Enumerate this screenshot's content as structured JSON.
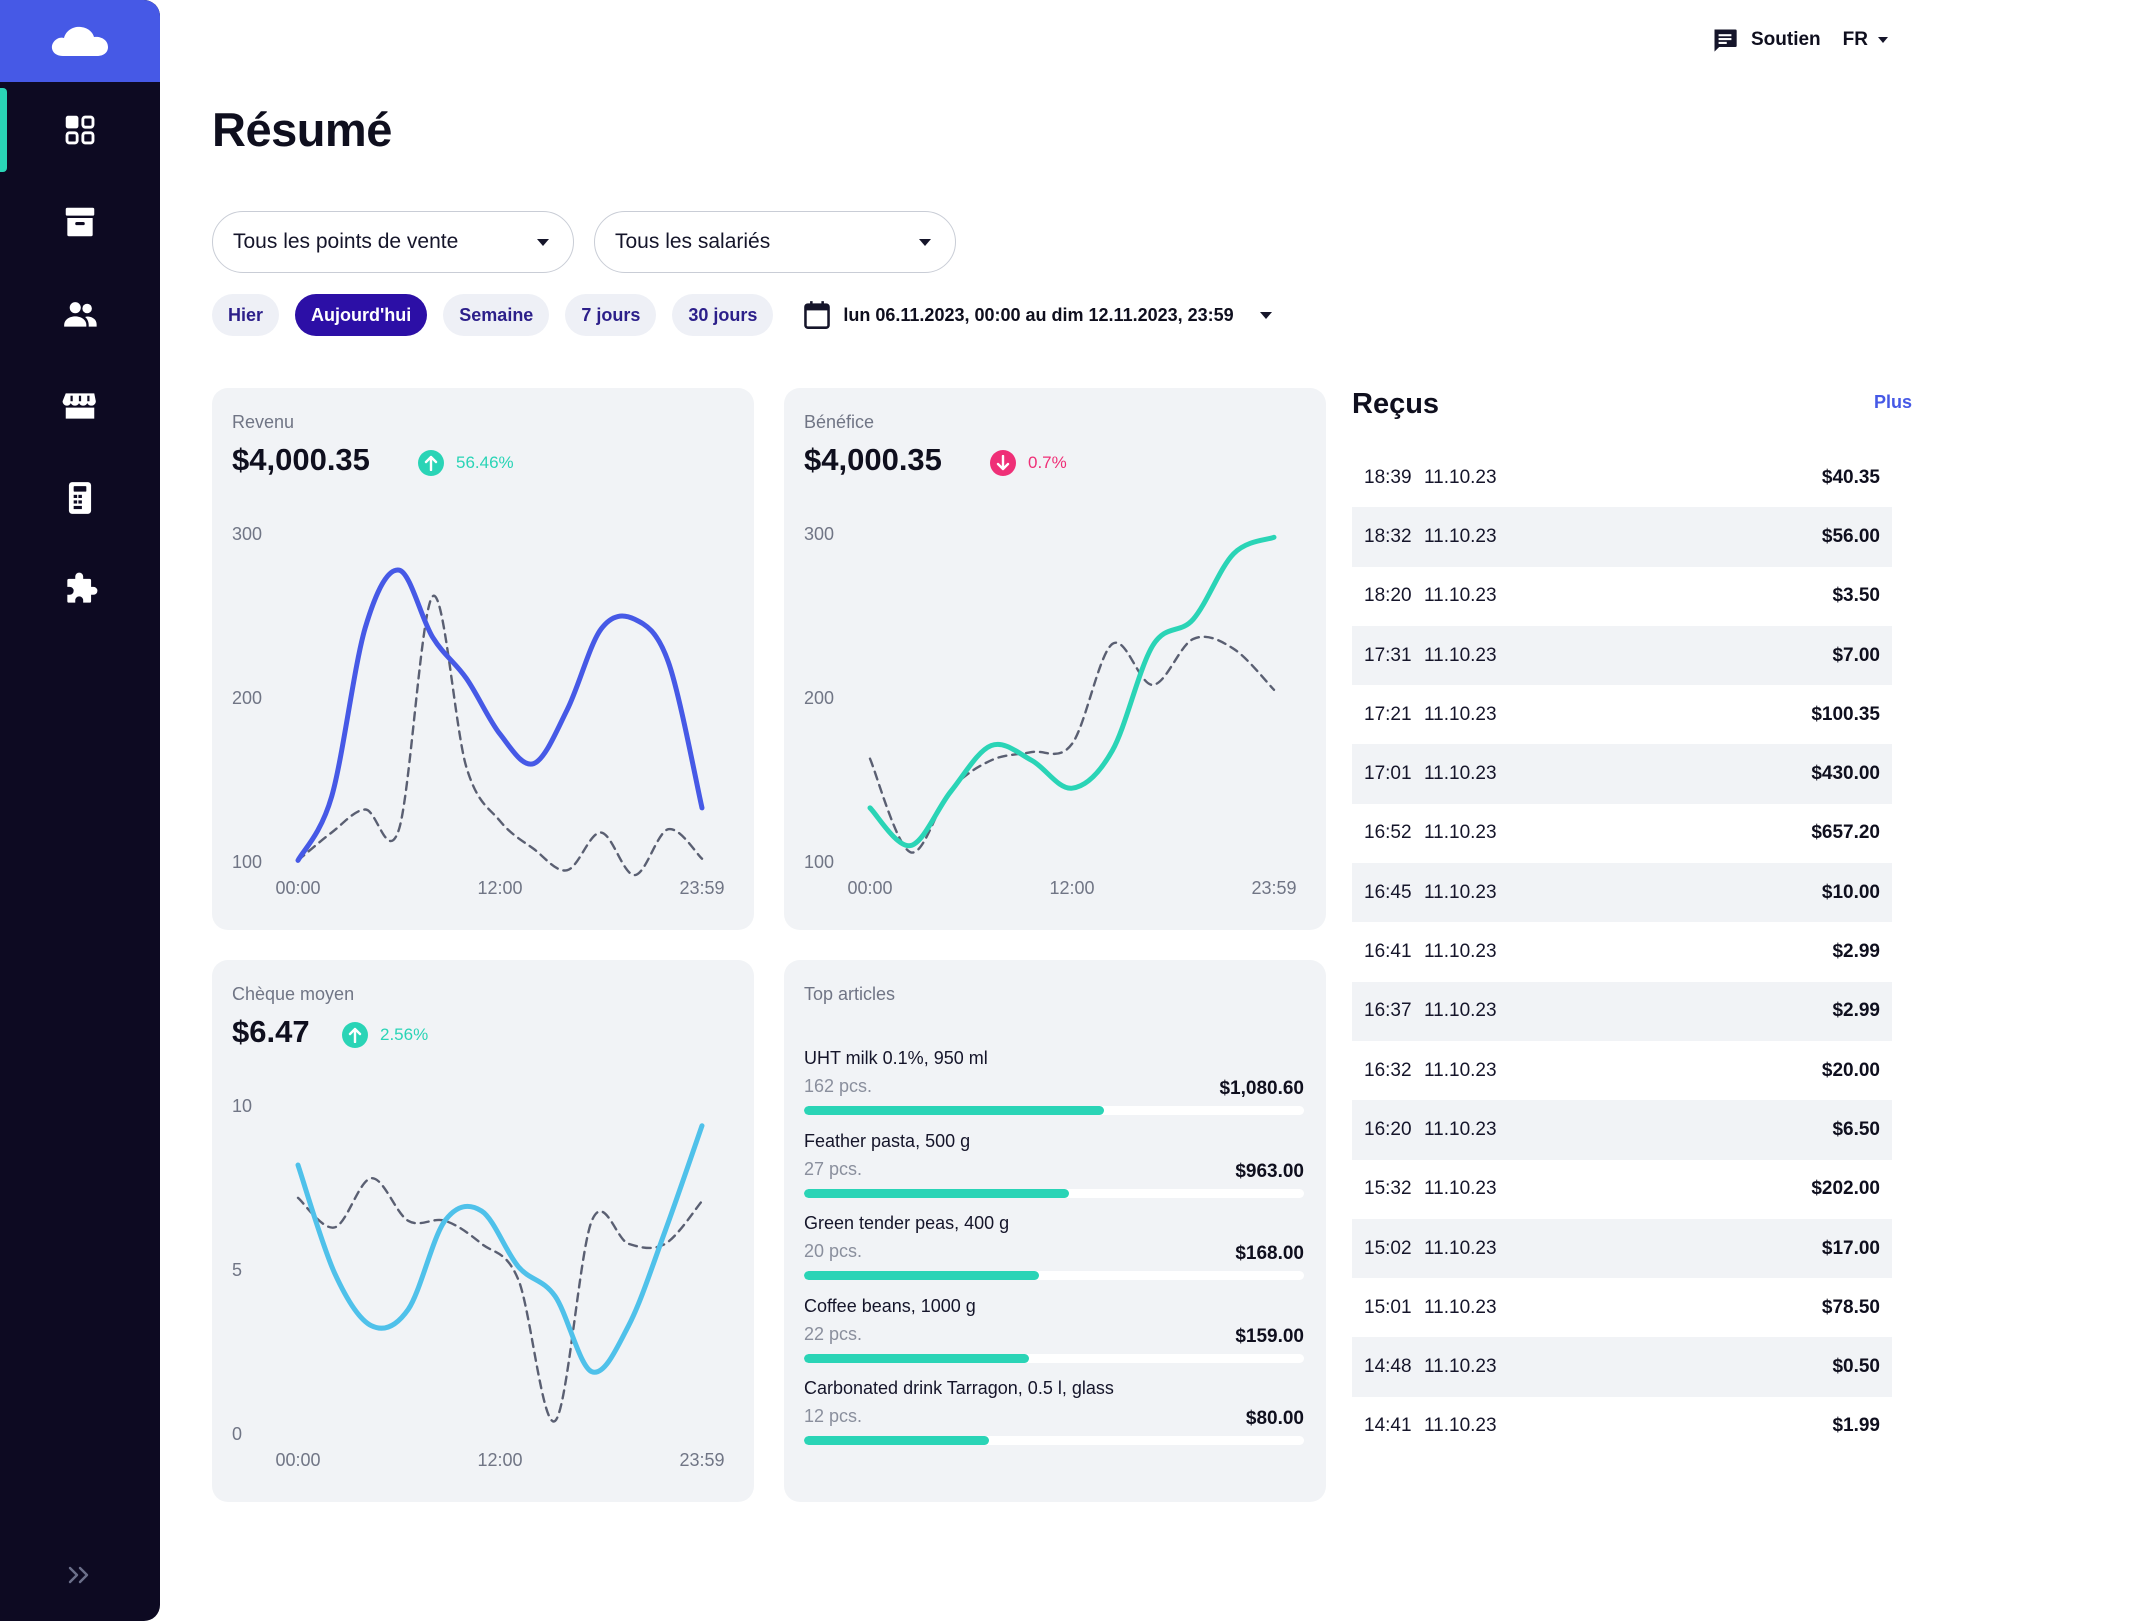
{
  "header": {
    "title": "Résumé",
    "support_label": "Soutien",
    "language": "FR"
  },
  "filters": {
    "points_of_sale": "Tous les points de vente",
    "employees": "Tous les salariés",
    "periods": [
      "Hier",
      "Aujourd'hui",
      "Semaine",
      "7 jours",
      "30 jours"
    ],
    "active_period": "Aujourd'hui",
    "date_range": "lun 06.11.2023, 00:00 au dim 12.11.2023, 23:59"
  },
  "colors": {
    "accent": "#4659e6",
    "teal": "#2ad4b6",
    "pink": "#ef2f77",
    "sky": "#4fc1ea",
    "sidebar": "#0d0a22"
  },
  "sidebar": {
    "items": [
      {
        "icon": "dashboard-icon",
        "active": true
      },
      {
        "icon": "archive-icon",
        "active": false
      },
      {
        "icon": "users-icon",
        "active": false
      },
      {
        "icon": "store-icon",
        "active": false
      },
      {
        "icon": "terminal-icon",
        "active": false
      },
      {
        "icon": "puzzle-icon",
        "active": false
      }
    ]
  },
  "cards": {
    "revenue": {
      "label": "Revenu",
      "value": "$4,000.35",
      "delta": "56.46%",
      "direction": "up"
    },
    "profit": {
      "label": "Bénéfice",
      "value": "$4,000.35",
      "delta": "0.7%",
      "direction": "down"
    },
    "avg_check": {
      "label": "Chèque moyen",
      "value": "$6.47",
      "delta": "2.56%",
      "direction": "up"
    }
  },
  "chart_data": [
    {
      "type": "line",
      "yticks": [
        "300",
        "200",
        "100"
      ],
      "xticks": [
        "00:00",
        "12:00",
        "23:59"
      ],
      "ylim": [
        100,
        300
      ],
      "series": [
        {
          "values": [
            101,
            140,
            243,
            278,
            237,
            212,
            178,
            160,
            193,
            242,
            248,
            222,
            133
          ]
        },
        {
          "values": [
            101,
            118,
            132,
            120,
            262,
            158,
            125,
            108,
            95,
            118,
            92,
            120,
            102
          ]
        }
      ]
    },
    {
      "type": "line",
      "yticks": [
        "300",
        "200",
        "100"
      ],
      "xticks": [
        "00:00",
        "12:00",
        "23:59"
      ],
      "ylim": [
        100,
        300
      ],
      "series": [
        {
          "values": [
            133,
            110,
            143,
            171,
            162,
            145,
            168,
            232,
            248,
            288,
            298
          ]
        },
        {
          "values": [
            163,
            106,
            144,
            162,
            167,
            172,
            233,
            208,
            236,
            230,
            205
          ]
        }
      ]
    },
    {
      "type": "line",
      "yticks": [
        "10",
        "5",
        "0"
      ],
      "xticks": [
        "00:00",
        "12:00",
        "23:59"
      ],
      "ylim": [
        0,
        10
      ],
      "series": [
        {
          "values": [
            8.2,
            4.9,
            3.3,
            3.8,
            6.5,
            6.8,
            5.1,
            4.2,
            1.9,
            3.3,
            6.2,
            9.4
          ]
        },
        {
          "values": [
            7.2,
            6.3,
            7.8,
            6.5,
            6.5,
            5.8,
            4.7,
            0.4,
            6.5,
            5.8,
            5.8,
            7.1
          ]
        }
      ]
    }
  ],
  "top_articles": {
    "title": "Top articles",
    "items": [
      {
        "name": "UHT milk 0.1%, 950 ml",
        "qty": "162 pcs.",
        "amount": "$1,080.60",
        "share": 0.6
      },
      {
        "name": "Feather pasta, 500 g",
        "qty": "27 pcs.",
        "amount": "$963.00",
        "share": 0.53
      },
      {
        "name": "Green tender peas, 400 g",
        "qty": "20 pcs.",
        "amount": "$168.00",
        "share": 0.47
      },
      {
        "name": "Coffee beans, 1000 g",
        "qty": "22 pcs.",
        "amount": "$159.00",
        "share": 0.45
      },
      {
        "name": "Carbonated drink Tarragon, 0.5 l, glass",
        "qty": "12 pcs.",
        "amount": "$80.00",
        "share": 0.37
      }
    ]
  },
  "receipts": {
    "title": "Reçus",
    "more_label": "Plus",
    "rows": [
      {
        "time": "18:39",
        "date": "11.10.23",
        "amount": "$40.35"
      },
      {
        "time": "18:32",
        "date": "11.10.23",
        "amount": "$56.00"
      },
      {
        "time": "18:20",
        "date": "11.10.23",
        "amount": "$3.50"
      },
      {
        "time": "17:31",
        "date": "11.10.23",
        "amount": "$7.00"
      },
      {
        "time": "17:21",
        "date": "11.10.23",
        "amount": "$100.35"
      },
      {
        "time": "17:01",
        "date": "11.10.23",
        "amount": "$430.00"
      },
      {
        "time": "16:52",
        "date": "11.10.23",
        "amount": "$657.20"
      },
      {
        "time": "16:45",
        "date": "11.10.23",
        "amount": "$10.00"
      },
      {
        "time": "16:41",
        "date": "11.10.23",
        "amount": "$2.99"
      },
      {
        "time": "16:37",
        "date": "11.10.23",
        "amount": "$2.99"
      },
      {
        "time": "16:32",
        "date": "11.10.23",
        "amount": "$20.00"
      },
      {
        "time": "16:20",
        "date": "11.10.23",
        "amount": "$6.50"
      },
      {
        "time": "15:32",
        "date": "11.10.23",
        "amount": "$202.00"
      },
      {
        "time": "15:02",
        "date": "11.10.23",
        "amount": "$17.00"
      },
      {
        "time": "15:01",
        "date": "11.10.23",
        "amount": "$78.50"
      },
      {
        "time": "14:48",
        "date": "11.10.23",
        "amount": "$0.50"
      },
      {
        "time": "14:41",
        "date": "11.10.23",
        "amount": "$1.99"
      }
    ]
  }
}
